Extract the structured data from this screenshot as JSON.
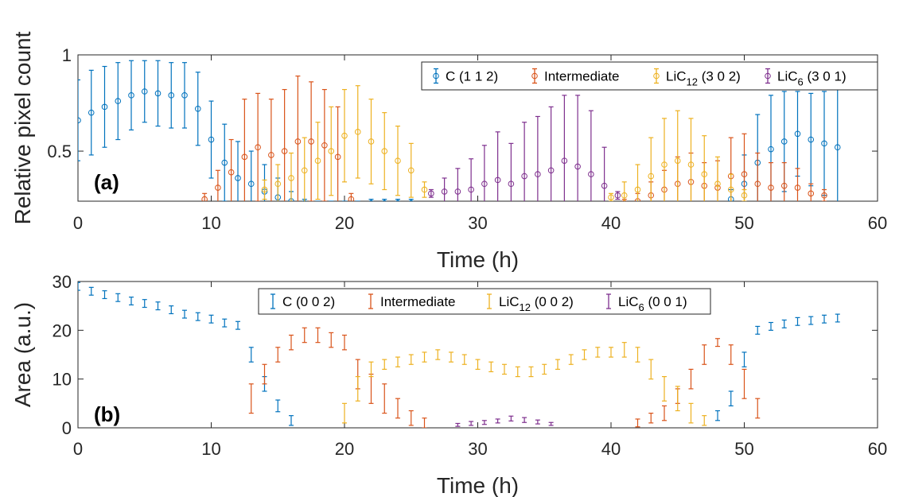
{
  "colors": {
    "blue": "#0072BD",
    "orange": "#D95319",
    "yellow": "#EDB120",
    "purple": "#7E2F8E"
  },
  "chart_data": [
    {
      "type": "scatter",
      "panel_label": "(a)",
      "xlabel": "Time (h)",
      "ylabel": "Relative pixel count",
      "xlim": [
        0,
        60
      ],
      "ylim": [
        0.24,
        1.0
      ],
      "xticks": [
        "0",
        "10",
        "20",
        "30",
        "40",
        "50",
        "60"
      ],
      "yticks": [
        "0.5",
        "1"
      ],
      "legend_position": "top-right",
      "grid": false,
      "series": [
        {
          "name": "C (1 1 2)",
          "legend_main": "C (1 1 2)",
          "legend_sub": "",
          "legend_rest": "",
          "color": "#0072BD",
          "x": [
            0,
            1,
            2,
            3,
            4,
            5,
            6,
            7,
            8,
            9,
            10,
            11,
            12,
            13,
            14,
            15,
            16,
            17,
            18,
            19,
            20,
            21,
            22,
            23,
            24,
            25,
            49,
            50,
            51,
            52,
            53,
            54,
            55,
            56,
            57
          ],
          "y": [
            0.66,
            0.7,
            0.73,
            0.76,
            0.79,
            0.81,
            0.8,
            0.79,
            0.79,
            0.72,
            0.56,
            0.44,
            0.36,
            0.33,
            0.29,
            0.26,
            0.24,
            0.23,
            0.22,
            0.22,
            0.22,
            0.22,
            0.23,
            0.23,
            0.23,
            0.23,
            0.25,
            0.33,
            0.44,
            0.51,
            0.55,
            0.59,
            0.56,
            0.54,
            0.52
          ],
          "err": [
            0.21,
            0.22,
            0.21,
            0.2,
            0.18,
            0.16,
            0.17,
            0.17,
            0.17,
            0.19,
            0.2,
            0.2,
            0.19,
            0.17,
            0.14,
            0.1,
            0.05,
            0.02,
            0.02,
            0.02,
            0.02,
            0.02,
            0.02,
            0.02,
            0.02,
            0.02,
            0.05,
            0.15,
            0.25,
            0.28,
            0.26,
            0.22,
            0.24,
            0.27,
            0.3
          ]
        },
        {
          "name": "Intermediate",
          "legend_main": "Intermediate",
          "legend_sub": "",
          "legend_rest": "",
          "color": "#D95319",
          "x": [
            9.5,
            10.5,
            11.5,
            12.5,
            13.5,
            14.5,
            15.5,
            16.5,
            17.5,
            18.5,
            19.5,
            20.5,
            41,
            42,
            43,
            44,
            45,
            46,
            47,
            48,
            49,
            50,
            51,
            52,
            53,
            54,
            55,
            56
          ],
          "y": [
            0.25,
            0.31,
            0.39,
            0.47,
            0.52,
            0.48,
            0.5,
            0.55,
            0.55,
            0.53,
            0.47,
            0.25,
            0.23,
            0.24,
            0.27,
            0.3,
            0.33,
            0.34,
            0.32,
            0.31,
            0.37,
            0.38,
            0.33,
            0.31,
            0.32,
            0.31,
            0.28,
            0.27
          ],
          "err": [
            0.03,
            0.09,
            0.17,
            0.3,
            0.28,
            0.29,
            0.32,
            0.34,
            0.31,
            0.29,
            0.26,
            0.03,
            0.02,
            0.04,
            0.07,
            0.1,
            0.14,
            0.15,
            0.12,
            0.14,
            0.2,
            0.21,
            0.16,
            0.13,
            0.12,
            0.1,
            0.05,
            0.03
          ]
        },
        {
          "name": "LiC12 (3 0 2)",
          "legend_main": "LiC",
          "legend_sub": "12",
          "legend_rest": " (3 0 2)",
          "color": "#EDB120",
          "x": [
            14,
            15,
            16,
            17,
            18,
            19,
            20,
            21,
            22,
            23,
            24,
            25,
            26,
            40,
            41,
            42,
            43,
            44,
            45,
            46,
            47,
            48,
            49,
            50
          ],
          "y": [
            0.3,
            0.33,
            0.36,
            0.4,
            0.45,
            0.5,
            0.58,
            0.6,
            0.55,
            0.5,
            0.45,
            0.4,
            0.3,
            0.26,
            0.27,
            0.3,
            0.37,
            0.43,
            0.45,
            0.43,
            0.38,
            0.33,
            0.3,
            0.27
          ],
          "err": [
            0.05,
            0.1,
            0.13,
            0.17,
            0.2,
            0.23,
            0.24,
            0.24,
            0.22,
            0.2,
            0.18,
            0.14,
            0.04,
            0.02,
            0.07,
            0.13,
            0.2,
            0.24,
            0.26,
            0.24,
            0.2,
            0.14,
            0.08,
            0.03
          ]
        },
        {
          "name": "LiC6 (3 0 1)",
          "legend_main": "LiC",
          "legend_sub": "6",
          "legend_rest": " (3 0 1)",
          "color": "#7E2F8E",
          "x": [
            26.5,
            27.5,
            28.5,
            29.5,
            30.5,
            31.5,
            32.5,
            33.5,
            34.5,
            35.5,
            36.5,
            37.5,
            38.5,
            39.5,
            40.5
          ],
          "y": [
            0.28,
            0.29,
            0.29,
            0.3,
            0.33,
            0.35,
            0.33,
            0.37,
            0.38,
            0.4,
            0.45,
            0.42,
            0.38,
            0.32,
            0.27
          ],
          "err": [
            0.02,
            0.07,
            0.12,
            0.16,
            0.2,
            0.25,
            0.21,
            0.28,
            0.3,
            0.33,
            0.34,
            0.37,
            0.33,
            0.2,
            0.02
          ]
        }
      ]
    },
    {
      "type": "scatter",
      "panel_label": "(b)",
      "xlabel": "Time (h)",
      "ylabel": "Area (a.u.)",
      "xlim": [
        0,
        60
      ],
      "ylim": [
        0,
        30
      ],
      "xticks": [
        "0",
        "10",
        "20",
        "30",
        "40",
        "50",
        "60"
      ],
      "yticks": [
        "0",
        "10",
        "20",
        "30"
      ],
      "legend_position": "top-center",
      "grid": false,
      "series": [
        {
          "name": "C (0 0 2)",
          "legend_main": "C (0 0 2)",
          "legend_sub": "",
          "legend_rest": "",
          "color": "#0072BD",
          "x": [
            0,
            1,
            2,
            3,
            4,
            5,
            6,
            7,
            8,
            9,
            10,
            11,
            12,
            13,
            14,
            15,
            16,
            48,
            49,
            50,
            51,
            52,
            53,
            54,
            55,
            56,
            57
          ],
          "y": [
            29,
            28,
            27.3,
            26.7,
            26,
            25.5,
            25,
            24.2,
            23.3,
            22.8,
            22.3,
            21.5,
            21,
            15,
            9,
            4.5,
            1.5,
            2.5,
            6,
            14,
            20,
            20.8,
            21.3,
            21.8,
            22,
            22.3,
            22.5
          ],
          "err": [
            0.8,
            0.8,
            0.8,
            0.8,
            0.8,
            0.8,
            0.8,
            0.8,
            0.8,
            0.8,
            0.8,
            0.8,
            0.8,
            1.5,
            1.5,
            1.2,
            1.0,
            1.0,
            1.5,
            1.5,
            0.8,
            0.8,
            0.8,
            0.8,
            0.8,
            0.8,
            0.8
          ]
        },
        {
          "name": "Intermediate",
          "legend_main": "Intermediate",
          "legend_sub": "",
          "legend_rest": "",
          "color": "#D95319",
          "x": [
            13,
            14,
            15,
            16,
            17,
            18,
            19,
            20,
            21,
            22,
            23,
            24,
            25,
            26,
            42,
            43,
            44,
            45,
            46,
            47,
            48,
            49,
            50,
            51
          ],
          "y": [
            6,
            11,
            15,
            17.5,
            19,
            19,
            18,
            17.5,
            11,
            8,
            6,
            4,
            2,
            1,
            1,
            2,
            3,
            6.5,
            10,
            15,
            17.5,
            15,
            9,
            4
          ],
          "err": [
            3,
            2,
            1.5,
            1.5,
            1.5,
            1.5,
            1.5,
            1.5,
            3,
            3,
            3,
            2,
            1.5,
            1,
            0.8,
            1,
            1.5,
            1.5,
            2,
            2,
            0.8,
            2,
            3,
            2
          ]
        },
        {
          "name": "LiC12 (0 0 2)",
          "legend_main": "LiC",
          "legend_sub": "12",
          "legend_rest": " (0 0 2)",
          "color": "#EDB120",
          "x": [
            20,
            21,
            22,
            23,
            24,
            25,
            26,
            27,
            28,
            29,
            30,
            31,
            32,
            33,
            34,
            35,
            36,
            37,
            38,
            39,
            40,
            41,
            42,
            43,
            44,
            45,
            46,
            47
          ],
          "y": [
            3,
            8,
            12,
            13,
            13.5,
            14,
            14.5,
            15,
            14.5,
            14,
            13,
            12.5,
            12,
            11.5,
            11.5,
            12,
            13,
            14,
            15,
            15.5,
            15.5,
            16,
            15,
            12,
            8,
            6,
            3,
            1.5
          ],
          "err": [
            2,
            2.5,
            1.5,
            1,
            1,
            1,
            1,
            1,
            1,
            1,
            1,
            1,
            1,
            1,
            1,
            1,
            1,
            1,
            1,
            1,
            1,
            1.5,
            1.5,
            2,
            2.5,
            2.5,
            2,
            1
          ]
        },
        {
          "name": "LiC6 (0 0 1)",
          "legend_main": "LiC",
          "legend_sub": "6",
          "legend_rest": " (0 0 1)",
          "color": "#7E2F8E",
          "x": [
            28.5,
            29.5,
            30.5,
            31.5,
            32.5,
            33.5,
            34.5,
            35.5
          ],
          "y": [
            0.6,
            0.9,
            1.1,
            1.4,
            1.9,
            1.6,
            1.2,
            0.8
          ],
          "err": [
            0.3,
            0.4,
            0.4,
            0.4,
            0.5,
            0.5,
            0.4,
            0.3
          ]
        }
      ]
    }
  ]
}
